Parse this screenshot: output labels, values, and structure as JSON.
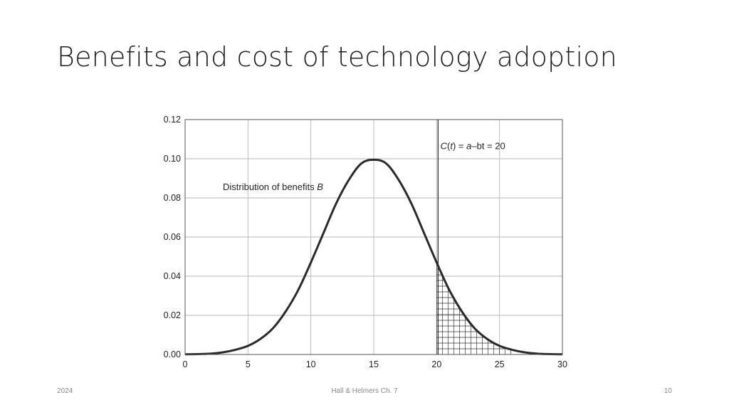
{
  "slide": {
    "title": "Benefits and cost of technology adoption",
    "footer_left": "2024",
    "footer_center": "Hall & Helmers Ch. 7",
    "footer_right": "10"
  },
  "chart_data": {
    "type": "line",
    "title": "",
    "xlabel": "",
    "ylabel": "",
    "xlim": [
      0,
      30
    ],
    "ylim": [
      0,
      0.12
    ],
    "grid": true,
    "x_ticks": [
      0,
      5,
      10,
      15,
      20,
      25,
      30
    ],
    "y_ticks": [
      0.0,
      0.02,
      0.04,
      0.06,
      0.08,
      0.1,
      0.12
    ],
    "x_tick_labels": [
      "0",
      "5",
      "10",
      "15",
      "20",
      "25",
      "30"
    ],
    "y_tick_labels": [
      "0.00",
      "0.02",
      "0.04",
      "0.06",
      "0.08",
      "0.10",
      "0.12"
    ],
    "series": [
      {
        "x": [
          0,
          1,
          2,
          3,
          4,
          5,
          6,
          7,
          8,
          9,
          10,
          11,
          12,
          13,
          14,
          15,
          16,
          17,
          18,
          19,
          20,
          21,
          22,
          23,
          24,
          25,
          26,
          27,
          28,
          29,
          30
        ],
        "values": [
          0.0001,
          0.0002,
          0.0004,
          0.0011,
          0.0024,
          0.0044,
          0.008,
          0.0135,
          0.022,
          0.033,
          0.047,
          0.062,
          0.077,
          0.089,
          0.0975,
          0.0995,
          0.0975,
          0.089,
          0.077,
          0.062,
          0.047,
          0.033,
          0.022,
          0.0135,
          0.008,
          0.0044,
          0.0024,
          0.0011,
          0.0004,
          0.0002,
          0.0001
        ]
      }
    ],
    "vertical_line": {
      "x": 20
    },
    "shaded_region": {
      "x_from": 20,
      "x_to": 26,
      "pattern": "grid"
    },
    "annotations": [
      {
        "text": "Distribution of benefits B",
        "x": 3,
        "y": 0.084
      },
      {
        "text": "C(t) = a–bt = 20",
        "x": 20.3,
        "y": 0.105
      }
    ]
  }
}
